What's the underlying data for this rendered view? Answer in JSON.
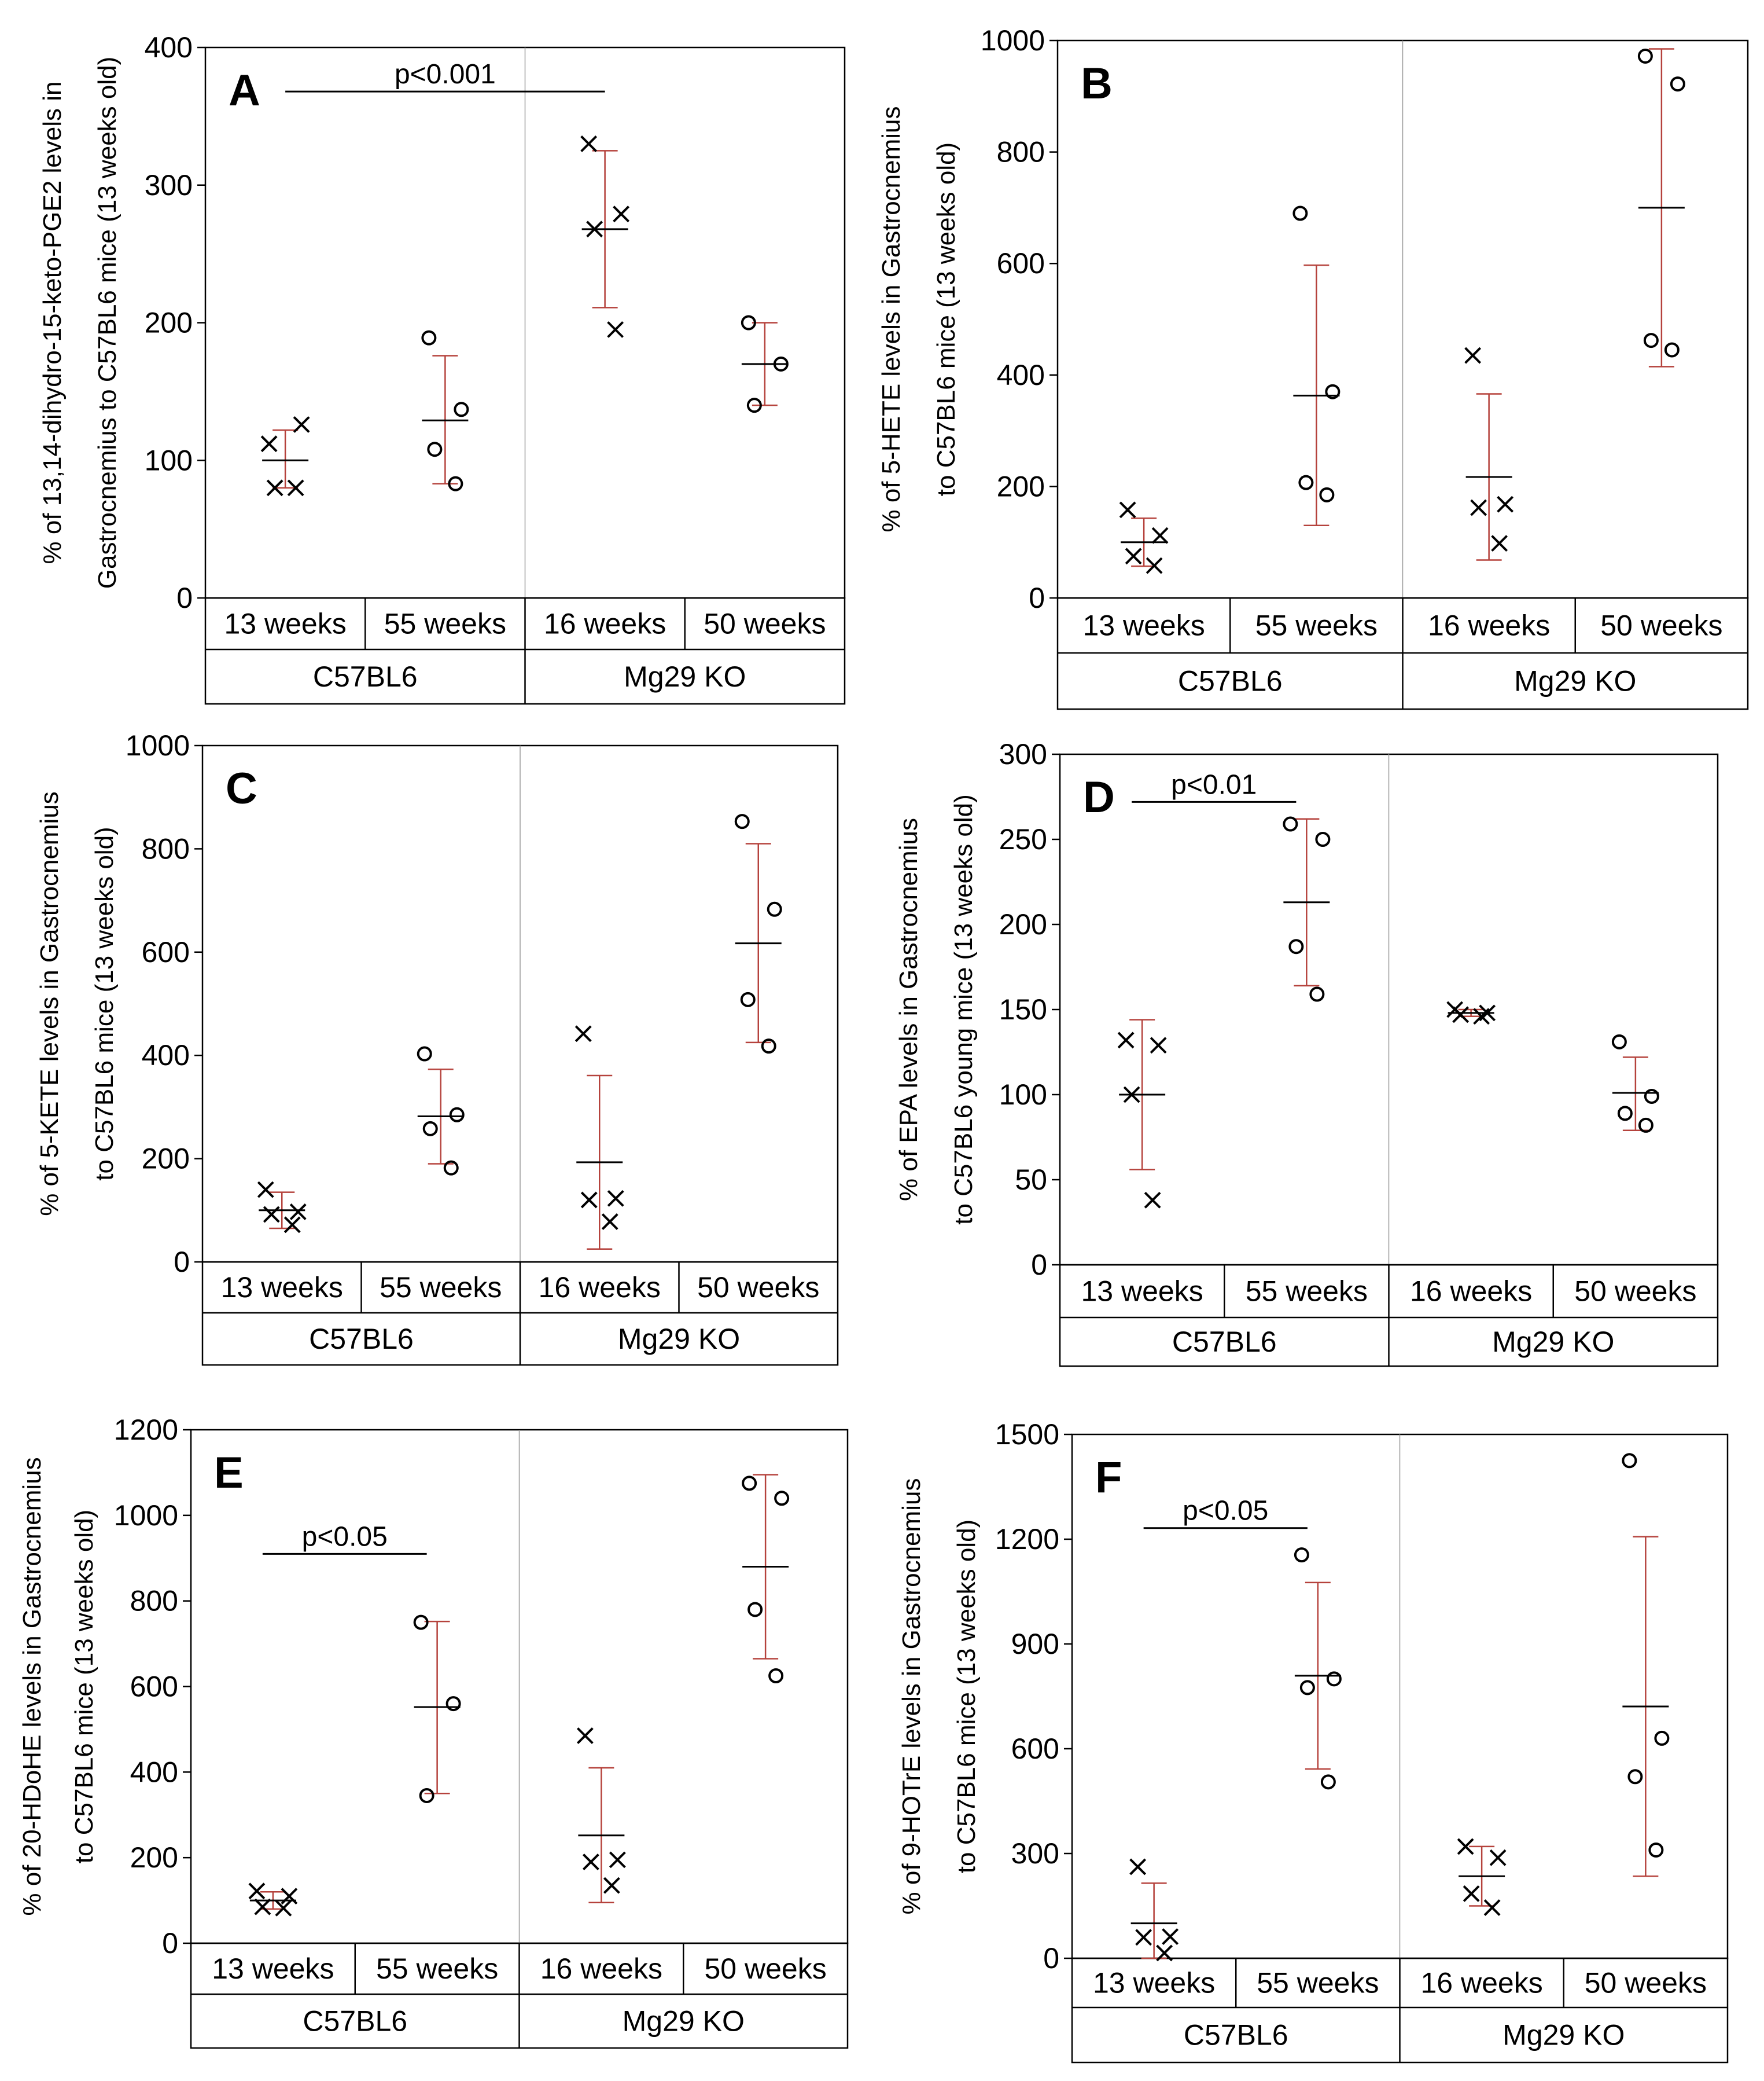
{
  "chart_data": [
    {
      "type": "scatter",
      "panel": "A",
      "ylabel_lines": [
        "% of 13,14-dihydro-15-keto-PGE2 levels in",
        "Gastrocnemius to C57BL6 mice (13 weeks old)"
      ],
      "ylim": [
        0,
        400
      ],
      "yticks": [
        "0",
        "100",
        "200",
        "300",
        "400"
      ],
      "ytick_values": [
        0,
        100,
        200,
        300,
        400
      ],
      "categories": [
        "13 weeks",
        "55 weeks",
        "16 weeks",
        "50 weeks"
      ],
      "groups": [
        "C57BL6",
        "Mg29 KO"
      ],
      "series": [
        {
          "category": "13 weeks",
          "marker": "x",
          "points": [
            112,
            126,
            80,
            80
          ],
          "mean": 100,
          "sd_low": 80,
          "sd_high": 122
        },
        {
          "category": "55 weeks",
          "marker": "o",
          "points": [
            189,
            137,
            108,
            83
          ],
          "mean": 129,
          "sd_low": 83,
          "sd_high": 176
        },
        {
          "category": "16 weeks",
          "marker": "x",
          "points": [
            330,
            279,
            268,
            195
          ],
          "mean": 268,
          "sd_low": 211,
          "sd_high": 325
        },
        {
          "category": "50 weeks",
          "marker": "o",
          "points": [
            200,
            170,
            140
          ],
          "mean": 170,
          "sd_low": 140,
          "sd_high": 200
        }
      ],
      "significance": [
        {
          "label": "p<0.001",
          "from": "13 weeks",
          "to": "16 weeks",
          "y": 368
        }
      ]
    },
    {
      "type": "scatter",
      "panel": "B",
      "ylabel_lines": [
        "% of 5-HETE levels in Gastrocnemius",
        "to C57BL6 mice (13 weeks old)"
      ],
      "ylim": [
        0,
        1000
      ],
      "yticks": [
        "0",
        "200",
        "400",
        "600",
        "800",
        "1000"
      ],
      "ytick_values": [
        0,
        200,
        400,
        600,
        800,
        1000
      ],
      "categories": [
        "13 weeks",
        "55 weeks",
        "16 weeks",
        "50 weeks"
      ],
      "groups": [
        "C57BL6",
        "Mg29 KO"
      ],
      "series": [
        {
          "category": "13 weeks",
          "marker": "x",
          "points": [
            158,
            112,
            75,
            58
          ],
          "mean": 100,
          "sd_low": 57,
          "sd_high": 143
        },
        {
          "category": "55 weeks",
          "marker": "o",
          "points": [
            690,
            370,
            207,
            185
          ],
          "mean": 363,
          "sd_low": 130,
          "sd_high": 597
        },
        {
          "category": "16 weeks",
          "marker": "x",
          "points": [
            435,
            168,
            162,
            98
          ],
          "mean": 217,
          "sd_low": 68,
          "sd_high": 366
        },
        {
          "category": "50 weeks",
          "marker": "o",
          "points": [
            972,
            922,
            462,
            445
          ],
          "mean": 700,
          "sd_low": 415,
          "sd_high": 985
        }
      ],
      "significance": []
    },
    {
      "type": "scatter",
      "panel": "C",
      "ylabel_lines": [
        "% of 5-KETE levels in Gastrocnemius",
        "to C57BL6 mice (13 weeks old)"
      ],
      "ylim": [
        0,
        1000
      ],
      "yticks": [
        "0",
        "200",
        "400",
        "600",
        "800",
        "1000"
      ],
      "ytick_values": [
        0,
        200,
        400,
        600,
        800,
        1000
      ],
      "categories": [
        "13 weeks",
        "55 weeks",
        "16 weeks",
        "50 weeks"
      ],
      "groups": [
        "C57BL6",
        "Mg29 KO"
      ],
      "series": [
        {
          "category": "13 weeks",
          "marker": "x",
          "points": [
            140,
            97,
            92,
            72
          ],
          "mean": 100,
          "sd_low": 65,
          "sd_high": 135
        },
        {
          "category": "55 weeks",
          "marker": "o",
          "points": [
            403,
            285,
            258,
            182
          ],
          "mean": 282,
          "sd_low": 190,
          "sd_high": 373
        },
        {
          "category": "16 weeks",
          "marker": "x",
          "points": [
            442,
            123,
            120,
            78
          ],
          "mean": 193,
          "sd_low": 25,
          "sd_high": 361
        },
        {
          "category": "50 weeks",
          "marker": "o",
          "points": [
            853,
            683,
            508,
            418
          ],
          "mean": 617,
          "sd_low": 425,
          "sd_high": 810
        }
      ],
      "significance": []
    },
    {
      "type": "scatter",
      "panel": "D",
      "ylabel_lines": [
        "% of EPA levels in Gastrocnemius",
        "to C57BL6 young mice (13 weeks old)"
      ],
      "ylim": [
        0,
        300
      ],
      "yticks": [
        "0",
        "50",
        "100",
        "150",
        "200",
        "250",
        "300"
      ],
      "ytick_values": [
        0,
        50,
        100,
        150,
        200,
        250,
        300
      ],
      "categories": [
        "13 weeks",
        "55 weeks",
        "16 weeks",
        "50 weeks"
      ],
      "groups": [
        "C57BL6",
        "Mg29 KO"
      ],
      "series": [
        {
          "category": "13 weeks",
          "marker": "x",
          "points": [
            132,
            129,
            100,
            38
          ],
          "mean": 100,
          "sd_low": 56,
          "sd_high": 144
        },
        {
          "category": "55 weeks",
          "marker": "o",
          "points": [
            259,
            250,
            187,
            159
          ],
          "mean": 213,
          "sd_low": 164,
          "sd_high": 262
        },
        {
          "category": "16 weeks",
          "marker": "x",
          "points": [
            150,
            148,
            147,
            146
          ],
          "mean": 148,
          "sd_low": 146,
          "sd_high": 150
        },
        {
          "category": "50 weeks",
          "marker": "o",
          "points": [
            131,
            99,
            89,
            82
          ],
          "mean": 101,
          "sd_low": 79,
          "sd_high": 122
        }
      ],
      "significance": [
        {
          "label": "p<0.01",
          "from": "13 weeks",
          "to": "55 weeks",
          "y": 272
        }
      ]
    },
    {
      "type": "scatter",
      "panel": "E",
      "ylabel_lines": [
        "% of 20-HDoHE levels in Gastrocnemius",
        "to C57BL6 mice (13 weeks old)"
      ],
      "ylim": [
        0,
        1200
      ],
      "yticks": [
        "0",
        "200",
        "400",
        "600",
        "800",
        "1000",
        "1200"
      ],
      "ytick_values": [
        0,
        200,
        400,
        600,
        800,
        1000,
        1200
      ],
      "categories": [
        "13 weeks",
        "55 weeks",
        "16 weeks",
        "50 weeks"
      ],
      "groups": [
        "C57BL6",
        "Mg29 KO"
      ],
      "series": [
        {
          "category": "13 weeks",
          "marker": "x",
          "points": [
            122,
            110,
            85,
            82
          ],
          "mean": 100,
          "sd_low": 80,
          "sd_high": 120
        },
        {
          "category": "55 weeks",
          "marker": "o",
          "points": [
            750,
            560,
            345
          ],
          "mean": 552,
          "sd_low": 350,
          "sd_high": 752
        },
        {
          "category": "16 weeks",
          "marker": "x",
          "points": [
            485,
            195,
            190,
            135
          ],
          "mean": 252,
          "sd_low": 95,
          "sd_high": 410
        },
        {
          "category": "50 weeks",
          "marker": "o",
          "points": [
            1075,
            1040,
            780,
            625
          ],
          "mean": 880,
          "sd_low": 665,
          "sd_high": 1095
        }
      ],
      "significance": [
        {
          "label": "p<0.05",
          "from": "13 weeks",
          "to": "55 weeks",
          "y": 910
        }
      ]
    },
    {
      "type": "scatter",
      "panel": "F",
      "ylabel_lines": [
        "% of 9-HOTrE levels in Gastrocnemius",
        "to C57BL6 mice (13 weeks old)"
      ],
      "ylim": [
        0,
        1500
      ],
      "yticks": [
        "0",
        "300",
        "600",
        "900",
        "1200",
        "1500"
      ],
      "ytick_values": [
        0,
        300,
        600,
        900,
        1200,
        1500
      ],
      "categories": [
        "13 weeks",
        "55 weeks",
        "16 weeks",
        "50 weeks"
      ],
      "groups": [
        "C57BL6",
        "Mg29 KO"
      ],
      "series": [
        {
          "category": "13 weeks",
          "marker": "x",
          "points": [
            262,
            62,
            60,
            15
          ],
          "mean": 100,
          "sd_low": 0,
          "sd_high": 215
        },
        {
          "category": "55 weeks",
          "marker": "o",
          "points": [
            1155,
            800,
            775,
            505
          ],
          "mean": 809,
          "sd_low": 542,
          "sd_high": 1076
        },
        {
          "category": "16 weeks",
          "marker": "x",
          "points": [
            320,
            288,
            185,
            145
          ],
          "mean": 235,
          "sd_low": 150,
          "sd_high": 320
        },
        {
          "category": "50 weeks",
          "marker": "o",
          "points": [
            1425,
            630,
            520,
            310
          ],
          "mean": 721,
          "sd_low": 235,
          "sd_high": 1207
        }
      ],
      "significance": [
        {
          "label": "p<0.05",
          "from": "13 weeks",
          "to": "55 weeks",
          "y": 1232
        }
      ]
    }
  ],
  "colors": {
    "error_bar": "#b5423c",
    "ink": "#000000",
    "divider": "#9a9a9a"
  }
}
